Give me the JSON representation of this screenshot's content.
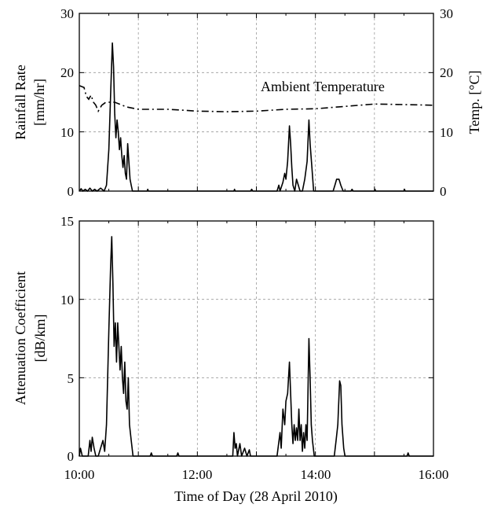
{
  "chart_data": [
    {
      "type": "line",
      "xlabel": "",
      "ylabel_left_line1": "Rainfall Rate",
      "ylabel_left_line2": "[mm/hr]",
      "ylabel_right": "Temp. [°C]",
      "annotation": "Ambient Temperature",
      "xlim": [
        10,
        16
      ],
      "ylim_left": [
        0,
        30
      ],
      "ylim_right": [
        0,
        30
      ],
      "yticks_left": [
        "0",
        "10",
        "20",
        "30"
      ],
      "yticks_right": [
        "0",
        "10",
        "20",
        "30"
      ],
      "grid": true,
      "series": [
        {
          "axis": "left",
          "style": "solid",
          "points": [
            [
              10.0,
              0
            ],
            [
              10.03,
              0.4
            ],
            [
              10.06,
              0
            ],
            [
              10.1,
              0.3
            ],
            [
              10.14,
              0
            ],
            [
              10.18,
              0.5
            ],
            [
              10.22,
              0
            ],
            [
              10.26,
              0.3
            ],
            [
              10.3,
              0
            ],
            [
              10.36,
              0.5
            ],
            [
              10.42,
              0
            ],
            [
              10.46,
              1
            ],
            [
              10.5,
              7
            ],
            [
              10.53,
              16
            ],
            [
              10.56,
              25
            ],
            [
              10.58,
              21
            ],
            [
              10.6,
              13
            ],
            [
              10.62,
              9
            ],
            [
              10.64,
              12
            ],
            [
              10.66,
              10
            ],
            [
              10.68,
              7
            ],
            [
              10.7,
              9
            ],
            [
              10.72,
              6
            ],
            [
              10.74,
              4
            ],
            [
              10.76,
              6
            ],
            [
              10.78,
              3
            ],
            [
              10.8,
              2
            ],
            [
              10.82,
              8
            ],
            [
              10.84,
              5
            ],
            [
              10.86,
              2
            ],
            [
              10.88,
              1
            ],
            [
              10.9,
              0
            ],
            [
              11.15,
              0
            ],
            [
              11.16,
              0.3
            ],
            [
              11.17,
              0
            ],
            [
              12.62,
              0
            ],
            [
              12.63,
              0.3
            ],
            [
              12.64,
              0
            ],
            [
              12.9,
              0
            ],
            [
              12.92,
              0.3
            ],
            [
              12.94,
              0
            ],
            [
              13.35,
              0
            ],
            [
              13.38,
              1
            ],
            [
              13.4,
              0
            ],
            [
              13.45,
              1.5
            ],
            [
              13.48,
              3
            ],
            [
              13.5,
              2
            ],
            [
              13.53,
              5
            ],
            [
              13.56,
              11
            ],
            [
              13.58,
              8
            ],
            [
              13.6,
              4
            ],
            [
              13.62,
              1
            ],
            [
              13.65,
              0
            ],
            [
              13.68,
              2
            ],
            [
              13.71,
              1
            ],
            [
              13.74,
              0
            ],
            [
              13.78,
              0
            ],
            [
              13.82,
              2
            ],
            [
              13.86,
              5
            ],
            [
              13.89,
              12
            ],
            [
              13.91,
              8
            ],
            [
              13.94,
              4
            ],
            [
              13.97,
              0
            ],
            [
              14.3,
              0
            ],
            [
              14.33,
              1
            ],
            [
              14.36,
              2
            ],
            [
              14.4,
              2
            ],
            [
              14.43,
              1
            ],
            [
              14.47,
              0
            ],
            [
              14.6,
              0
            ],
            [
              14.62,
              0.3
            ],
            [
              14.64,
              0
            ],
            [
              15.0,
              0
            ],
            [
              15.01,
              0.3
            ],
            [
              15.02,
              0
            ],
            [
              15.5,
              0
            ],
            [
              15.51,
              0.3
            ],
            [
              15.52,
              0
            ],
            [
              16.0,
              0
            ]
          ]
        },
        {
          "axis": "right",
          "style": "dash-dot",
          "points": [
            [
              10.0,
              17.8
            ],
            [
              10.08,
              17.5
            ],
            [
              10.12,
              16
            ],
            [
              10.16,
              15.5
            ],
            [
              10.2,
              16.2
            ],
            [
              10.24,
              15
            ],
            [
              10.28,
              14.5
            ],
            [
              10.32,
              13.5
            ],
            [
              10.38,
              14.5
            ],
            [
              10.45,
              15
            ],
            [
              10.6,
              15
            ],
            [
              10.8,
              14.2
            ],
            [
              11.0,
              13.8
            ],
            [
              11.5,
              13.8
            ],
            [
              12.0,
              13.5
            ],
            [
              12.5,
              13.4
            ],
            [
              13.0,
              13.5
            ],
            [
              13.5,
              13.8
            ],
            [
              14.0,
              13.9
            ],
            [
              14.5,
              14.3
            ],
            [
              15.0,
              14.7
            ],
            [
              15.5,
              14.6
            ],
            [
              16.0,
              14.5
            ]
          ]
        }
      ]
    },
    {
      "type": "line",
      "xlabel": "Time of Day (28 April 2010)",
      "ylabel_line1": "Attenuation Coefficient",
      "ylabel_line2": "[dB/km]",
      "xlim": [
        10,
        16
      ],
      "ylim": [
        0,
        15
      ],
      "xticks": [
        "10:00",
        "12:00",
        "14:00",
        "16:00"
      ],
      "yticks": [
        "0",
        "5",
        "10",
        "15"
      ],
      "grid": true,
      "series": [
        {
          "style": "solid",
          "points": [
            [
              10.0,
              0
            ],
            [
              10.02,
              0.5
            ],
            [
              10.05,
              0
            ],
            [
              10.15,
              0
            ],
            [
              10.18,
              1
            ],
            [
              10.2,
              0.3
            ],
            [
              10.22,
              1.2
            ],
            [
              10.25,
              0.5
            ],
            [
              10.28,
              0
            ],
            [
              10.32,
              0
            ],
            [
              10.36,
              0.5
            ],
            [
              10.4,
              1
            ],
            [
              10.43,
              0.3
            ],
            [
              10.46,
              2
            ],
            [
              10.5,
              8
            ],
            [
              10.53,
              12
            ],
            [
              10.55,
              14
            ],
            [
              10.57,
              11
            ],
            [
              10.59,
              7
            ],
            [
              10.61,
              8.5
            ],
            [
              10.63,
              6
            ],
            [
              10.65,
              8.5
            ],
            [
              10.67,
              7
            ],
            [
              10.69,
              5.5
            ],
            [
              10.71,
              7
            ],
            [
              10.73,
              5
            ],
            [
              10.75,
              4
            ],
            [
              10.77,
              6
            ],
            [
              10.79,
              3.5
            ],
            [
              10.81,
              3
            ],
            [
              10.83,
              5
            ],
            [
              10.85,
              2
            ],
            [
              10.88,
              1
            ],
            [
              10.91,
              0
            ],
            [
              11.2,
              0
            ],
            [
              11.22,
              0.2
            ],
            [
              11.24,
              0
            ],
            [
              11.65,
              0
            ],
            [
              11.67,
              0.2
            ],
            [
              11.69,
              0
            ],
            [
              12.55,
              0
            ],
            [
              12.6,
              0
            ],
            [
              12.62,
              1.5
            ],
            [
              12.64,
              0.5
            ],
            [
              12.66,
              0.8
            ],
            [
              12.68,
              0
            ],
            [
              12.72,
              0.8
            ],
            [
              12.75,
              0
            ],
            [
              12.8,
              0.5
            ],
            [
              12.84,
              0
            ],
            [
              12.88,
              0.4
            ],
            [
              12.9,
              0
            ],
            [
              13.35,
              0
            ],
            [
              13.4,
              1.5
            ],
            [
              13.42,
              0.5
            ],
            [
              13.45,
              3
            ],
            [
              13.48,
              2
            ],
            [
              13.5,
              3.5
            ],
            [
              13.53,
              4
            ],
            [
              13.56,
              6
            ],
            [
              13.58,
              4
            ],
            [
              13.6,
              2
            ],
            [
              13.62,
              0.8
            ],
            [
              13.64,
              2
            ],
            [
              13.66,
              1
            ],
            [
              13.68,
              1.8
            ],
            [
              13.7,
              1
            ],
            [
              13.72,
              3
            ],
            [
              13.74,
              1
            ],
            [
              13.76,
              2
            ],
            [
              13.78,
              0.3
            ],
            [
              13.8,
              1.5
            ],
            [
              13.82,
              0.5
            ],
            [
              13.84,
              2
            ],
            [
              13.86,
              1
            ],
            [
              13.89,
              7.5
            ],
            [
              13.91,
              5
            ],
            [
              13.93,
              2
            ],
            [
              13.95,
              1
            ],
            [
              13.98,
              0
            ],
            [
              14.32,
              0
            ],
            [
              14.35,
              1
            ],
            [
              14.38,
              2
            ],
            [
              14.41,
              4.8
            ],
            [
              14.43,
              4.5
            ],
            [
              14.45,
              2
            ],
            [
              14.48,
              0.5
            ],
            [
              14.5,
              0
            ],
            [
              15.55,
              0
            ],
            [
              15.57,
              0.2
            ],
            [
              15.59,
              0
            ],
            [
              16.0,
              0
            ]
          ]
        }
      ]
    }
  ]
}
